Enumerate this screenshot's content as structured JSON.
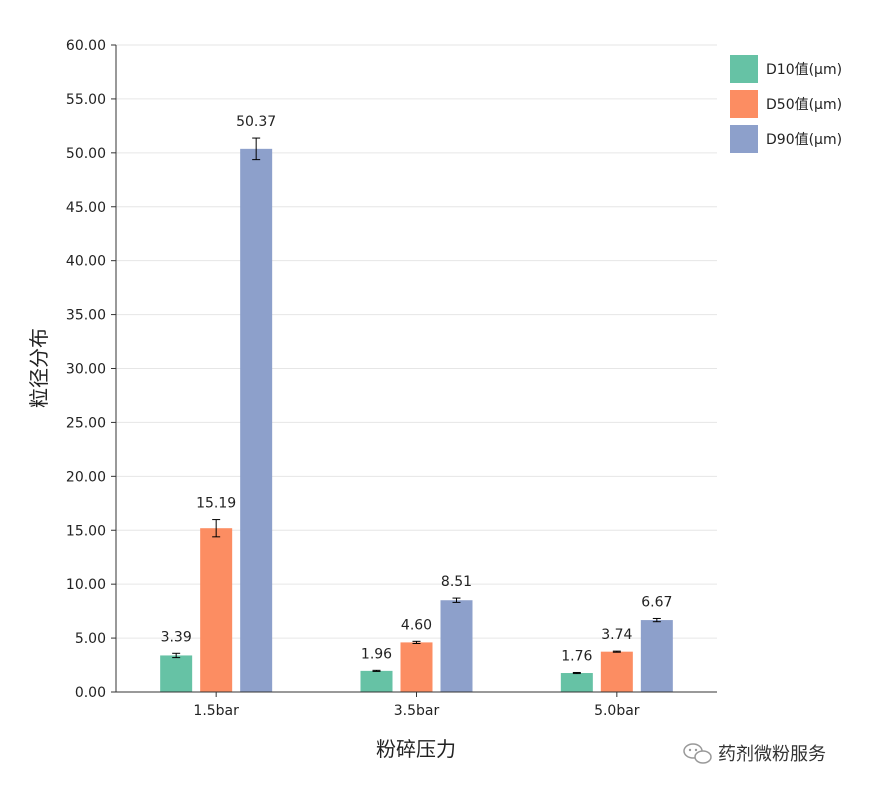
{
  "chart_data": {
    "type": "bar",
    "categories": [
      "1.5bar",
      "3.5bar",
      "5.0bar"
    ],
    "series": [
      {
        "name": "D10值(μm)",
        "color": "#66c2a5",
        "values": [
          3.39,
          1.96,
          1.76
        ],
        "labels": [
          "3.39",
          "1.96",
          "1.76"
        ],
        "errors": [
          0.2,
          0.05,
          0.05
        ]
      },
      {
        "name": "D50值(μm)",
        "color": "#fc8d62",
        "values": [
          15.19,
          4.6,
          3.74
        ],
        "labels": [
          "15.19",
          "4.60",
          "3.74"
        ],
        "errors": [
          0.8,
          0.1,
          0.05
        ]
      },
      {
        "name": "D90值(μm)",
        "color": "#8da0cb",
        "values": [
          50.37,
          8.51,
          6.67
        ],
        "labels": [
          "50.37",
          "8.51",
          "6.67"
        ],
        "errors": [
          1.0,
          0.2,
          0.15
        ]
      }
    ],
    "ylim": [
      0,
      60
    ],
    "yticks": [
      "0.00",
      "5.00",
      "10.00",
      "15.00",
      "20.00",
      "25.00",
      "30.00",
      "35.00",
      "40.00",
      "45.00",
      "50.00",
      "55.00",
      "60.00"
    ],
    "xlabel": "粉碎压力",
    "ylabel": "粒径分布",
    "grid": true,
    "legend_position": "top-right"
  },
  "watermark": {
    "text": "药剂微粉服务",
    "icon": "wechat-icon"
  }
}
